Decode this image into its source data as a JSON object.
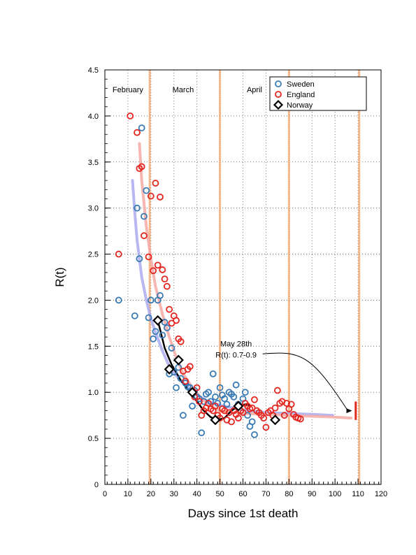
{
  "chart_data": {
    "type": "scatter",
    "xlabel": "Days since 1st death",
    "ylabel": "R(t)",
    "xlim": [
      0,
      120
    ],
    "ylim": [
      0,
      4.5
    ],
    "xticks": [
      0,
      10,
      20,
      30,
      40,
      50,
      60,
      70,
      80,
      90,
      100,
      110,
      120
    ],
    "yticks": [
      0,
      0.5,
      1.0,
      1.5,
      2.0,
      2.5,
      3.0,
      3.5,
      4.0,
      4.5
    ],
    "ytick_labels": [
      "0",
      "0.5",
      "1.0",
      "1.5",
      "2.0",
      "2.5",
      "3.0",
      "3.5",
      "4.0",
      "4.5"
    ],
    "grid": true,
    "legend": {
      "placement": "top-right",
      "entries": [
        "Sweden",
        "England",
        "Norway"
      ]
    },
    "month_labels": [
      {
        "label": "February",
        "x": 10
      },
      {
        "label": "March",
        "x": 34
      },
      {
        "label": "April",
        "x": 65
      }
    ],
    "vertical_lines": [
      19.5,
      50,
      80,
      110.5
    ],
    "colors": {
      "sweden": "#3a7bb5",
      "england": "#e3261f",
      "norway": "#000000",
      "sweden_fit": "#aaaaee",
      "england_fit": "#f4a9a4",
      "vline": "#f7b88c",
      "projection": "#e3261f"
    },
    "series": [
      {
        "name": "Sweden",
        "marker": "circle",
        "points": [
          [
            6,
            2.0
          ],
          [
            13,
            1.83
          ],
          [
            14,
            3.0
          ],
          [
            15,
            2.45
          ],
          [
            16,
            3.87
          ],
          [
            17,
            2.91
          ],
          [
            18,
            3.19
          ],
          [
            19,
            1.81
          ],
          [
            20,
            2.0
          ],
          [
            21,
            1.58
          ],
          [
            22,
            1.66
          ],
          [
            23,
            2.0
          ],
          [
            24,
            2.05
          ],
          [
            25,
            1.62
          ],
          [
            26,
            1.76
          ],
          [
            27,
            1.7
          ],
          [
            28,
            1.2
          ],
          [
            29,
            1.48
          ],
          [
            30,
            1.22
          ],
          [
            31,
            1.05
          ],
          [
            32,
            1.27
          ],
          [
            33,
            1.15
          ],
          [
            34,
            0.75
          ],
          [
            35,
            1.1
          ],
          [
            36,
            1.06
          ],
          [
            37,
            1.05
          ],
          [
            38,
            0.85
          ],
          [
            39,
            1.02
          ],
          [
            40,
            0.95
          ],
          [
            41,
            0.93
          ],
          [
            42,
            0.56
          ],
          [
            43,
            0.9
          ],
          [
            44,
            0.98
          ],
          [
            45,
            1.0
          ],
          [
            46,
            0.9
          ],
          [
            47,
            1.2
          ],
          [
            48,
            0.95
          ],
          [
            49,
            0.88
          ],
          [
            50,
            1.05
          ],
          [
            51,
            0.97
          ],
          [
            52,
            0.93
          ],
          [
            53,
            0.87
          ],
          [
            54,
            1.0
          ],
          [
            55,
            0.98
          ],
          [
            56,
            0.95
          ],
          [
            57,
            1.08
          ],
          [
            58,
            0.87
          ],
          [
            59,
            0.8
          ],
          [
            60,
            0.93
          ],
          [
            61,
            1.0
          ],
          [
            62,
            0.75
          ],
          [
            63,
            0.63
          ],
          [
            64,
            0.68
          ],
          [
            65,
            0.54
          ]
        ]
      },
      {
        "name": "England",
        "marker": "circle",
        "points": [
          [
            6,
            2.5
          ],
          [
            11,
            4.0
          ],
          [
            14,
            3.82
          ],
          [
            15,
            3.43
          ],
          [
            16,
            3.45
          ],
          [
            17,
            2.7
          ],
          [
            19,
            2.47
          ],
          [
            20,
            3.13
          ],
          [
            21,
            2.32
          ],
          [
            22,
            3.27
          ],
          [
            23,
            2.38
          ],
          [
            24,
            3.12
          ],
          [
            25,
            2.33
          ],
          [
            26,
            2.23
          ],
          [
            27,
            2.15
          ],
          [
            28,
            1.9
          ],
          [
            29,
            1.75
          ],
          [
            30,
            1.83
          ],
          [
            31,
            1.78
          ],
          [
            32,
            1.58
          ],
          [
            33,
            1.55
          ],
          [
            34,
            1.23
          ],
          [
            35,
            1.12
          ],
          [
            36,
            1.25
          ],
          [
            37,
            1.28
          ],
          [
            38,
            1.0
          ],
          [
            39,
            0.95
          ],
          [
            40,
            1.05
          ],
          [
            41,
            0.9
          ],
          [
            42,
            0.75
          ],
          [
            43,
            0.8
          ],
          [
            44,
            0.83
          ],
          [
            45,
            0.88
          ],
          [
            46,
            0.82
          ],
          [
            47,
            0.8
          ],
          [
            48,
            0.85
          ],
          [
            49,
            0.75
          ],
          [
            50,
            0.72
          ],
          [
            51,
            0.82
          ],
          [
            52,
            0.8
          ],
          [
            53,
            0.7
          ],
          [
            54,
            0.78
          ],
          [
            55,
            0.68
          ],
          [
            56,
            0.8
          ],
          [
            57,
            0.76
          ],
          [
            58,
            0.72
          ],
          [
            59,
            0.8
          ],
          [
            60,
            0.78
          ],
          [
            61,
            0.88
          ],
          [
            62,
            0.85
          ],
          [
            63,
            0.82
          ],
          [
            64,
            0.83
          ],
          [
            65,
            0.92
          ],
          [
            66,
            0.8
          ],
          [
            67,
            0.78
          ],
          [
            68,
            0.75
          ],
          [
            69,
            0.72
          ],
          [
            70,
            0.62
          ],
          [
            71,
            0.78
          ],
          [
            72,
            0.8
          ],
          [
            73,
            0.75
          ],
          [
            74,
            0.83
          ],
          [
            75,
            1.02
          ],
          [
            76,
            0.88
          ],
          [
            77,
            0.9
          ],
          [
            78,
            0.75
          ],
          [
            79,
            0.88
          ],
          [
            80,
            0.82
          ],
          [
            81,
            0.87
          ],
          [
            82,
            0.76
          ],
          [
            83,
            0.73
          ],
          [
            84,
            0.72
          ],
          [
            85,
            0.71
          ]
        ]
      },
      {
        "name": "Norway",
        "marker": "diamond",
        "points": [
          [
            23,
            1.78
          ],
          [
            28,
            1.25
          ],
          [
            32,
            1.35
          ],
          [
            38,
            1.0
          ],
          [
            48,
            0.7
          ],
          [
            58,
            0.85
          ],
          [
            74,
            0.7
          ]
        ]
      }
    ],
    "fits": [
      {
        "series": "Sweden",
        "points": [
          [
            12,
            3.3
          ],
          [
            13,
            2.95
          ],
          [
            14,
            2.65
          ],
          [
            16,
            2.25
          ],
          [
            18,
            2.0
          ],
          [
            20,
            1.8
          ],
          [
            22,
            1.65
          ],
          [
            25,
            1.45
          ],
          [
            28,
            1.28
          ],
          [
            32,
            1.15
          ],
          [
            36,
            1.05
          ],
          [
            40,
            0.97
          ],
          [
            45,
            0.9
          ],
          [
            50,
            0.86
          ],
          [
            60,
            0.81
          ],
          [
            70,
            0.78
          ],
          [
            80,
            0.77
          ],
          [
            90,
            0.76
          ],
          [
            99,
            0.75
          ]
        ]
      },
      {
        "series": "England",
        "points": [
          [
            15,
            3.7
          ],
          [
            16,
            3.3
          ],
          [
            18,
            2.8
          ],
          [
            20,
            2.45
          ],
          [
            22,
            2.15
          ],
          [
            25,
            1.85
          ],
          [
            28,
            1.6
          ],
          [
            31,
            1.38
          ],
          [
            34,
            1.2
          ],
          [
            38,
            1.05
          ],
          [
            42,
            0.93
          ],
          [
            46,
            0.85
          ],
          [
            50,
            0.8
          ],
          [
            55,
            0.78
          ],
          [
            60,
            0.77
          ],
          [
            70,
            0.76
          ],
          [
            80,
            0.75
          ],
          [
            90,
            0.74
          ],
          [
            100,
            0.73
          ],
          [
            107,
            0.72
          ]
        ]
      },
      {
        "series": "Norway",
        "points": [
          [
            23,
            1.78
          ],
          [
            26,
            1.48
          ],
          [
            29,
            1.3
          ],
          [
            33,
            1.13
          ],
          [
            37,
            1.0
          ],
          [
            40,
            0.9
          ],
          [
            43,
            0.8
          ],
          [
            46,
            0.73
          ],
          [
            49,
            0.7
          ],
          [
            52,
            0.72
          ],
          [
            55,
            0.8
          ],
          [
            58,
            0.85
          ],
          [
            61,
            0.87
          ],
          [
            63,
            0.86
          ]
        ]
      }
    ],
    "projection": {
      "x": 109,
      "y_range": [
        0.7,
        0.9
      ]
    },
    "annotation": {
      "lines": [
        "May 28th",
        "R(t): 0.7-0.9"
      ],
      "text_at": [
        57,
        1.5
      ],
      "arrow_to": [
        108,
        0.8
      ]
    }
  }
}
